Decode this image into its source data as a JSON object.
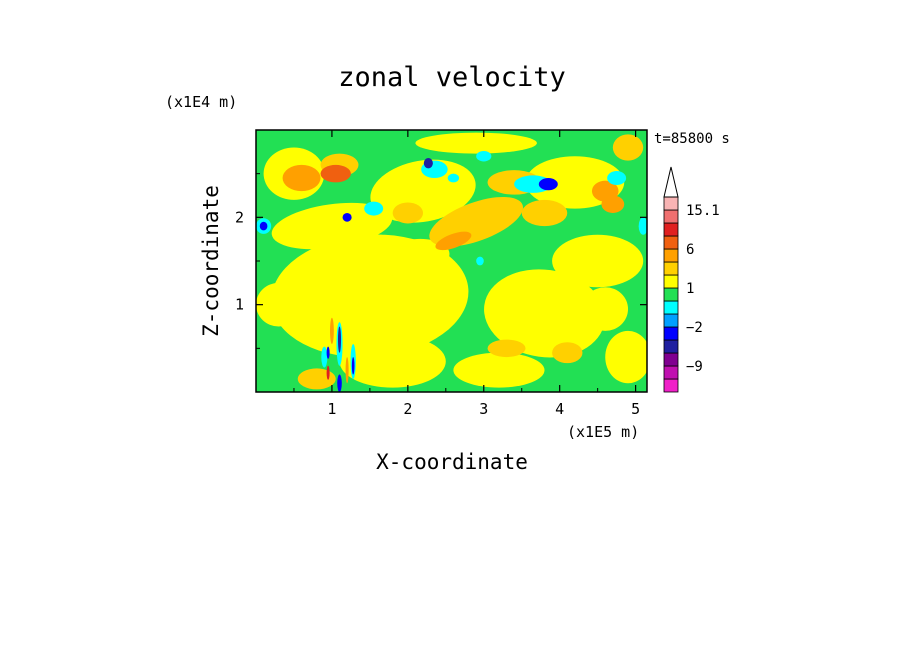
{
  "chart_data": {
    "type": "heatmap",
    "title": "zonal velocity",
    "xlabel": "X-coordinate",
    "ylabel": "Z-coordinate",
    "x_unit": "(x1E5 m)",
    "y_unit": "(x1E4 m)",
    "time_label": "t=85800 s",
    "xlim": [
      0,
      5.15
    ],
    "ylim": [
      0,
      3.0
    ],
    "x_ticks": [
      1,
      2,
      3,
      4,
      5
    ],
    "y_ticks": [
      1,
      2
    ],
    "x_tick_labels": [
      "1",
      "2",
      "3",
      "4",
      "5"
    ],
    "y_tick_labels": [
      "1",
      "2"
    ],
    "colorbar": {
      "levels": [
        -15,
        -12,
        -9,
        -6,
        -4,
        -2,
        -1,
        0,
        1,
        2,
        4,
        6,
        9,
        12,
        15.1
      ],
      "colors": [
        "#f020c8",
        "#c010b0",
        "#800090",
        "#2020a0",
        "#0000ff",
        "#00a0ff",
        "#00ffff",
        "#22e054",
        "#ffff00",
        "#ffd000",
        "#ffa000",
        "#f06010",
        "#e02020",
        "#f07070",
        "#f8b4b4",
        "#ffffff"
      ],
      "labels": [
        "15.1",
        "6",
        "1",
        "−2",
        "−9"
      ],
      "label_values": [
        15.1,
        6,
        1,
        -2,
        -9
      ]
    }
  }
}
